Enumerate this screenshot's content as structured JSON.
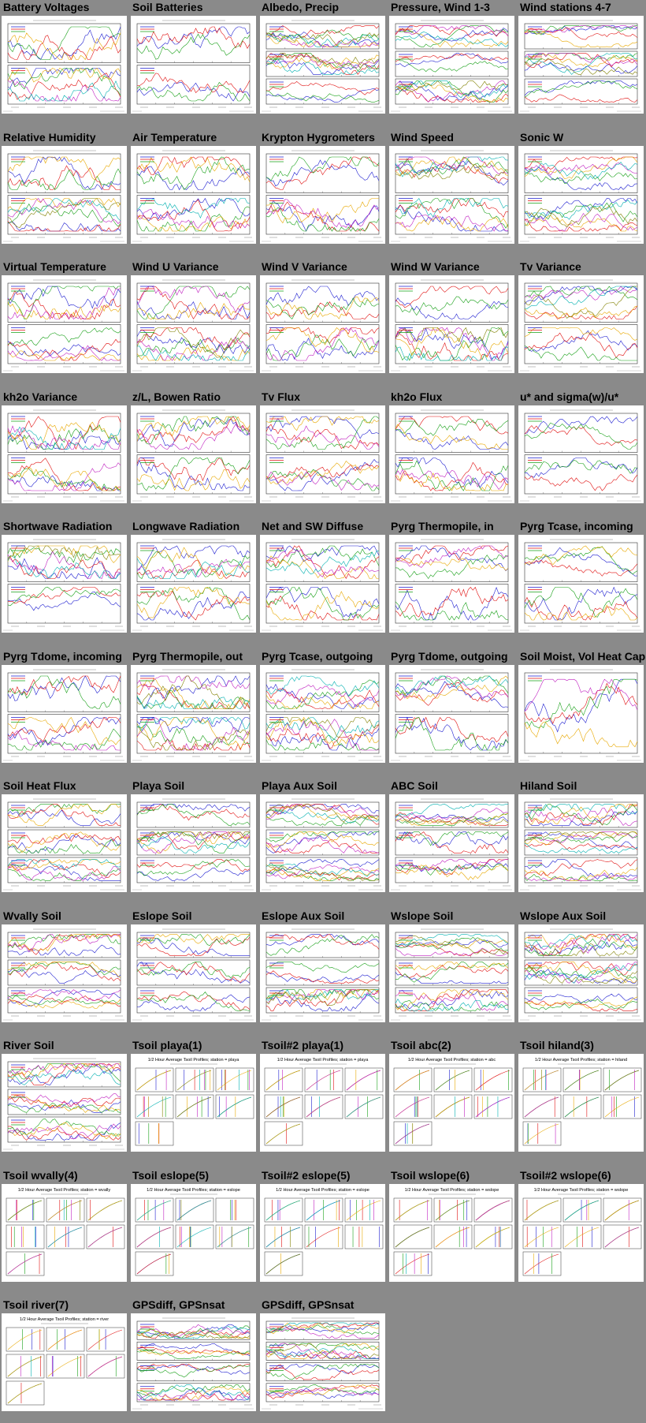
{
  "page": {
    "background": "#8a8a8a"
  },
  "tiles": [
    {
      "title": "Battery Voltages",
      "kind": "ts2"
    },
    {
      "title": "Soil Batteries",
      "kind": "ts2"
    },
    {
      "title": "Albedo, Precip",
      "kind": "ts3"
    },
    {
      "title": "Pressure, Wind 1-3",
      "kind": "ts3"
    },
    {
      "title": "Wind stations 4-7",
      "kind": "ts3"
    },
    {
      "title": "Relative Humidity",
      "kind": "ts2"
    },
    {
      "title": "Air Temperature",
      "kind": "ts2"
    },
    {
      "title": "Krypton Hygrometers",
      "kind": "ts2"
    },
    {
      "title": "Wind Speed",
      "kind": "ts2"
    },
    {
      "title": "Sonic W",
      "kind": "ts2"
    },
    {
      "title": "Virtual Temperature",
      "kind": "ts2"
    },
    {
      "title": "Wind U Variance",
      "kind": "ts2"
    },
    {
      "title": "Wind V Variance",
      "kind": "ts2"
    },
    {
      "title": "Wind W Variance",
      "kind": "ts2"
    },
    {
      "title": "Tv Variance",
      "kind": "ts2"
    },
    {
      "title": "kh2o Variance",
      "kind": "ts2"
    },
    {
      "title": "z/L, Bowen Ratio",
      "kind": "ts2"
    },
    {
      "title": "Tv Flux",
      "kind": "ts2"
    },
    {
      "title": "kh2o Flux",
      "kind": "ts2"
    },
    {
      "title": "u* and sigma(w)/u*",
      "kind": "ts2"
    },
    {
      "title": "Shortwave Radiation",
      "kind": "ts2"
    },
    {
      "title": "Longwave Radiation",
      "kind": "ts2"
    },
    {
      "title": "Net and SW Diffuse",
      "kind": "ts2"
    },
    {
      "title": "Pyrg Thermopile, in",
      "kind": "ts2"
    },
    {
      "title": "Pyrg Tcase, incoming",
      "kind": "ts2"
    },
    {
      "title": "Pyrg Tdome, incoming",
      "kind": "ts2"
    },
    {
      "title": "Pyrg Thermopile, out",
      "kind": "ts2"
    },
    {
      "title": "Pyrg Tcase, outgoing",
      "kind": "ts2"
    },
    {
      "title": "Pyrg Tdome, outgoing",
      "kind": "ts2"
    },
    {
      "title": "Soil Moist, Vol Heat Cap",
      "kind": "ts1"
    },
    {
      "title": "Soil Heat Flux",
      "kind": "ts3"
    },
    {
      "title": "Playa Soil",
      "kind": "ts3"
    },
    {
      "title": "Playa Aux Soil",
      "kind": "ts3"
    },
    {
      "title": "ABC Soil",
      "kind": "ts3"
    },
    {
      "title": "Hiland Soil",
      "kind": "ts3"
    },
    {
      "title": "Wvally Soil",
      "kind": "ts3"
    },
    {
      "title": "Eslope Soil",
      "kind": "ts3"
    },
    {
      "title": "Eslope Aux Soil",
      "kind": "ts3"
    },
    {
      "title": "Wslope Soil",
      "kind": "ts3"
    },
    {
      "title": "Wslope Aux Soil",
      "kind": "ts3"
    },
    {
      "title": "River Soil",
      "kind": "ts3"
    },
    {
      "title": "Tsoil playa(1)",
      "kind": "grid",
      "header": "1/2 Hour Average Tsoil Profiles; station = playa"
    },
    {
      "title": "Tsoil#2 playa(1)",
      "kind": "grid",
      "header": "1/2 Hour Average Tsoil Profiles; station = playa"
    },
    {
      "title": "Tsoil abc(2)",
      "kind": "grid",
      "header": "1/2 Hour Average Tsoil Profiles; station = abc"
    },
    {
      "title": "Tsoil hiland(3)",
      "kind": "grid",
      "header": "1/2 Hour Average Tsoil Profiles; station = hiland"
    },
    {
      "title": "Tsoil wvally(4)",
      "kind": "grid",
      "header": "1/2 Hour Average Tsoil Profiles; station = wvally"
    },
    {
      "title": "Tsoil eslope(5)",
      "kind": "grid",
      "header": "1/2 Hour Average Tsoil Profiles; station = eslope"
    },
    {
      "title": "Tsoil#2 eslope(5)",
      "kind": "grid",
      "header": "1/2 Hour Average Tsoil Profiles; station = eslope"
    },
    {
      "title": "Tsoil wslope(6)",
      "kind": "grid",
      "header": "1/2 Hour Average Tsoil Profiles; station = wslope"
    },
    {
      "title": "Tsoil#2 wslope(6)",
      "kind": "grid",
      "header": "1/2 Hour Average Tsoil Profiles; station = wslope"
    },
    {
      "title": "Tsoil river(7)",
      "kind": "grid",
      "header": "1/2 Hour Average Tsoil Profiles; station = river"
    },
    {
      "title": "GPSdiff, GPSnsat",
      "kind": "ts4"
    },
    {
      "title": "GPSdiff, GPSnsat",
      "kind": "ts4"
    }
  ],
  "series_colors": [
    "#1f1fd0",
    "#e01010",
    "#18a018",
    "#e8a800",
    "#c020c0",
    "#00b0b0",
    "#808000",
    "#ff7f00",
    "#7f3fbf",
    "#000000"
  ]
}
